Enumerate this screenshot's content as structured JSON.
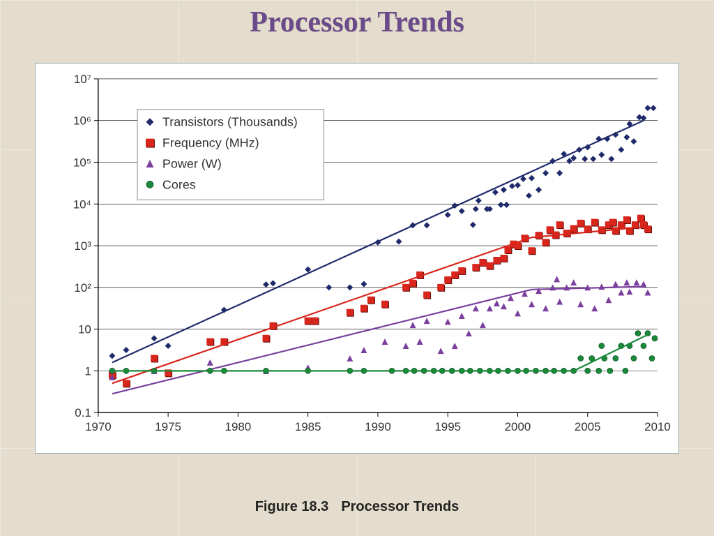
{
  "slide": {
    "title": "Processor Trends",
    "background_color": "#e4ddcd"
  },
  "caption": {
    "prefix": "Figure 18.3",
    "text": "Processor Trends",
    "fontsize": 20,
    "color": "#222222"
  },
  "chart": {
    "type": "scatter-log",
    "background_color": "#ffffff",
    "border_color": "#99aaaa",
    "axis_color": "#000000",
    "grid_color": "#000000",
    "grid_width": 0.6,
    "axis_fontsize": 17,
    "xlim": [
      1970,
      2010
    ],
    "xtick_step": 5,
    "xticks": [
      1970,
      1975,
      1980,
      1985,
      1990,
      1995,
      2000,
      2005,
      2010
    ],
    "yscale": "log",
    "ylim_exp": [
      -1,
      7
    ],
    "yticks_exp": [
      -1,
      0,
      1,
      2,
      3,
      4,
      5,
      6,
      7
    ],
    "ytick_labels": [
      "0.1",
      "1",
      "10",
      "10²",
      "10³",
      "10⁴",
      "10⁵",
      "10⁶",
      "10⁷"
    ],
    "legend": {
      "x": 1973,
      "y_top_exp": 6.2,
      "box_border": "#888888",
      "box_fill": "#ffffff",
      "label_fontsize": 18
    },
    "series": [
      {
        "name": "Transistors (Thousands)",
        "color": "#1f2a6b",
        "marker": "diamond",
        "marker_size": 9,
        "trend": {
          "x1": 1971,
          "y1_exp": 0.2,
          "x2": 2009,
          "y2_exp": 6.0
        },
        "points": [
          [
            1971,
            0.36
          ],
          [
            1972,
            0.5
          ],
          [
            1974,
            0.78
          ],
          [
            1975,
            0.6
          ],
          [
            1979,
            1.46
          ],
          [
            1982,
            2.07
          ],
          [
            1982.5,
            2.1
          ],
          [
            1985,
            2.43
          ],
          [
            1986.5,
            2.0
          ],
          [
            1988,
            2.0
          ],
          [
            1989,
            2.08
          ],
          [
            1990,
            3.08
          ],
          [
            1991.5,
            3.1
          ],
          [
            1992.5,
            3.49
          ],
          [
            1993.5,
            3.49
          ],
          [
            1995,
            3.74
          ],
          [
            1995.5,
            3.96
          ],
          [
            1996,
            3.83
          ],
          [
            1996.8,
            3.5
          ],
          [
            1997,
            3.88
          ],
          [
            1997.2,
            4.08
          ],
          [
            1997.8,
            3.88
          ],
          [
            1998,
            3.88
          ],
          [
            1998.4,
            4.28
          ],
          [
            1998.8,
            3.98
          ],
          [
            1999,
            4.34
          ],
          [
            1999.2,
            3.98
          ],
          [
            1999.6,
            4.43
          ],
          [
            2000,
            4.45
          ],
          [
            2000.4,
            4.6
          ],
          [
            2000.8,
            4.2
          ],
          [
            2001,
            4.62
          ],
          [
            2001.5,
            4.34
          ],
          [
            2002,
            4.74
          ],
          [
            2002.5,
            5.03
          ],
          [
            2003,
            4.74
          ],
          [
            2003.3,
            5.2
          ],
          [
            2003.7,
            5.03
          ],
          [
            2004,
            5.1
          ],
          [
            2004.4,
            5.3
          ],
          [
            2004.8,
            5.08
          ],
          [
            2005,
            5.36
          ],
          [
            2005.4,
            5.08
          ],
          [
            2005.8,
            5.56
          ],
          [
            2006,
            5.18
          ],
          [
            2006.4,
            5.56
          ],
          [
            2006.7,
            5.08
          ],
          [
            2007,
            5.66
          ],
          [
            2007.4,
            5.3
          ],
          [
            2007.8,
            5.6
          ],
          [
            2008,
            5.92
          ],
          [
            2008.3,
            5.5
          ],
          [
            2008.7,
            6.08
          ],
          [
            2009,
            6.06
          ],
          [
            2009.3,
            6.3
          ],
          [
            2009.7,
            6.3
          ]
        ]
      },
      {
        "name": "Frequency (MHz)",
        "color": "#d8261c",
        "marker": "square",
        "marker_size": 10,
        "trend_segments": [
          {
            "x1": 1971,
            "y1_exp": -0.3,
            "x2": 2001,
            "y2_exp": 3.2
          },
          {
            "x1": 2001,
            "y1_exp": 3.2,
            "x2": 2009,
            "y2_exp": 3.45
          }
        ],
        "points": [
          [
            1971,
            -0.1
          ],
          [
            1972,
            -0.3
          ],
          [
            1974,
            0.3
          ],
          [
            1975,
            -0.05
          ],
          [
            1978,
            0.7
          ],
          [
            1979,
            0.7
          ],
          [
            1982,
            0.78
          ],
          [
            1982.5,
            1.08
          ],
          [
            1985,
            1.2
          ],
          [
            1985.5,
            1.2
          ],
          [
            1988,
            1.4
          ],
          [
            1989,
            1.5
          ],
          [
            1989.5,
            1.7
          ],
          [
            1990.5,
            1.6
          ],
          [
            1992,
            2.0
          ],
          [
            1992.5,
            2.1
          ],
          [
            1993,
            2.3
          ],
          [
            1993.5,
            1.82
          ],
          [
            1994.5,
            2.0
          ],
          [
            1995,
            2.18
          ],
          [
            1995.5,
            2.3
          ],
          [
            1996,
            2.4
          ],
          [
            1997,
            2.48
          ],
          [
            1997.5,
            2.6
          ],
          [
            1998,
            2.52
          ],
          [
            1998.5,
            2.65
          ],
          [
            1999,
            2.7
          ],
          [
            1999.3,
            2.9
          ],
          [
            1999.7,
            3.04
          ],
          [
            2000,
            3.0
          ],
          [
            2000.5,
            3.18
          ],
          [
            2001,
            2.88
          ],
          [
            2001.5,
            3.25
          ],
          [
            2002,
            3.08
          ],
          [
            2002.3,
            3.38
          ],
          [
            2002.7,
            3.26
          ],
          [
            2003,
            3.5
          ],
          [
            2003.5,
            3.3
          ],
          [
            2004,
            3.41
          ],
          [
            2004.5,
            3.54
          ],
          [
            2005,
            3.4
          ],
          [
            2005.5,
            3.56
          ],
          [
            2006,
            3.38
          ],
          [
            2006.5,
            3.5
          ],
          [
            2006.8,
            3.56
          ],
          [
            2007,
            3.36
          ],
          [
            2007.4,
            3.5
          ],
          [
            2007.8,
            3.62
          ],
          [
            2008,
            3.36
          ],
          [
            2008.4,
            3.5
          ],
          [
            2008.8,
            3.66
          ],
          [
            2009,
            3.5
          ],
          [
            2009.3,
            3.4
          ]
        ]
      },
      {
        "name": "Power (W)",
        "color": "#7b3f9d",
        "marker": "triangle",
        "marker_size": 9,
        "trend_segments": [
          {
            "x1": 1971,
            "y1_exp": -0.55,
            "x2": 2001,
            "y2_exp": 1.95
          },
          {
            "x1": 2001,
            "y1_exp": 1.95,
            "x2": 2009,
            "y2_exp": 2.02
          }
        ],
        "points": [
          [
            1971,
            -0.15
          ],
          [
            1974,
            0.0
          ],
          [
            1978,
            0.2
          ],
          [
            1982,
            0.0
          ],
          [
            1985,
            0.08
          ],
          [
            1988,
            0.3
          ],
          [
            1989,
            0.5
          ],
          [
            1990.5,
            0.7
          ],
          [
            1992,
            0.6
          ],
          [
            1992.5,
            1.1
          ],
          [
            1993,
            0.7
          ],
          [
            1993.5,
            1.2
          ],
          [
            1994.5,
            0.48
          ],
          [
            1995,
            1.18
          ],
          [
            1995.5,
            0.6
          ],
          [
            1996,
            1.32
          ],
          [
            1996.5,
            0.9
          ],
          [
            1997,
            1.5
          ],
          [
            1997.5,
            1.1
          ],
          [
            1998,
            1.5
          ],
          [
            1998.5,
            1.62
          ],
          [
            1999,
            1.55
          ],
          [
            1999.5,
            1.75
          ],
          [
            2000,
            1.38
          ],
          [
            2000.5,
            1.85
          ],
          [
            2001,
            1.6
          ],
          [
            2001.5,
            1.92
          ],
          [
            2002,
            1.5
          ],
          [
            2002.5,
            2.0
          ],
          [
            2002.8,
            2.2
          ],
          [
            2003,
            1.66
          ],
          [
            2003.5,
            2.0
          ],
          [
            2004,
            2.12
          ],
          [
            2004.5,
            1.6
          ],
          [
            2005,
            2.0
          ],
          [
            2005.5,
            1.5
          ],
          [
            2006,
            2.02
          ],
          [
            2006.5,
            1.7
          ],
          [
            2007,
            2.08
          ],
          [
            2007.4,
            1.88
          ],
          [
            2007.8,
            2.12
          ],
          [
            2008,
            1.9
          ],
          [
            2008.5,
            2.12
          ],
          [
            2009,
            2.08
          ],
          [
            2009.3,
            1.88
          ]
        ]
      },
      {
        "name": "Cores",
        "color": "#1a8a3a",
        "marker": "circle",
        "marker_size": 8,
        "trend_segments": [
          {
            "x1": 1971,
            "y1_exp": 0.0,
            "x2": 2004,
            "y2_exp": 0.0
          },
          {
            "x1": 2004,
            "y1_exp": 0.0,
            "x2": 2009.5,
            "y2_exp": 0.9
          }
        ],
        "points": [
          [
            1971,
            0
          ],
          [
            1972,
            0
          ],
          [
            1974,
            0
          ],
          [
            1978,
            0
          ],
          [
            1979,
            0
          ],
          [
            1982,
            0
          ],
          [
            1985,
            0
          ],
          [
            1988,
            0
          ],
          [
            1989,
            0
          ],
          [
            1991,
            0
          ],
          [
            1992,
            0
          ],
          [
            1992.6,
            0
          ],
          [
            1993.3,
            0
          ],
          [
            1994,
            0
          ],
          [
            1994.6,
            0
          ],
          [
            1995.3,
            0
          ],
          [
            1996,
            0
          ],
          [
            1996.6,
            0
          ],
          [
            1997.3,
            0
          ],
          [
            1998,
            0
          ],
          [
            1998.6,
            0
          ],
          [
            1999.3,
            0
          ],
          [
            2000,
            0
          ],
          [
            2000.6,
            0
          ],
          [
            2001.3,
            0
          ],
          [
            2002,
            0
          ],
          [
            2002.6,
            0
          ],
          [
            2003.3,
            0
          ],
          [
            2004,
            0
          ],
          [
            2004.5,
            0.3
          ],
          [
            2005,
            0.0
          ],
          [
            2005.3,
            0.3
          ],
          [
            2005.8,
            0.0
          ],
          [
            2006,
            0.6
          ],
          [
            2006.2,
            0.3
          ],
          [
            2006.6,
            0.0
          ],
          [
            2007,
            0.3
          ],
          [
            2007.4,
            0.6
          ],
          [
            2007.7,
            0.0
          ],
          [
            2008,
            0.6
          ],
          [
            2008.3,
            0.3
          ],
          [
            2008.6,
            0.9
          ],
          [
            2009,
            0.6
          ],
          [
            2009.3,
            0.9
          ],
          [
            2009.6,
            0.3
          ],
          [
            2009.8,
            0.78
          ]
        ]
      }
    ]
  }
}
